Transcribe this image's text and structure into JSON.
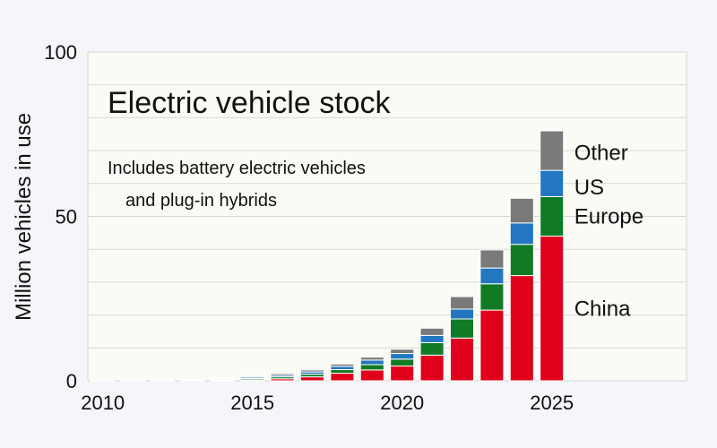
{
  "chart_data": {
    "type": "bar",
    "stacked": true,
    "title": "Electric vehicle stock",
    "subtitle_lines": [
      "Includes battery electric vehicles",
      "and plug-in hybrids"
    ],
    "ylabel": "Million vehicles in use",
    "xlabel": "",
    "ylim": [
      0,
      100
    ],
    "xlim": [
      2009.5,
      2029.5
    ],
    "yticks": [
      0,
      50,
      100
    ],
    "xticks": [
      2010,
      2015,
      2020,
      2025
    ],
    "grid": true,
    "legend": "labels beside final bar (right)",
    "x": [
      2010,
      2011,
      2012,
      2013,
      2014,
      2015,
      2016,
      2017,
      2018,
      2019,
      2020,
      2021,
      2022,
      2023,
      2024,
      2025
    ],
    "series": [
      {
        "name": "China",
        "color": "#e0001b",
        "values": [
          0.01,
          0.02,
          0.03,
          0.05,
          0.1,
          0.3,
          0.6,
          1.2,
          2.3,
          3.3,
          4.5,
          7.8,
          13.0,
          21.5,
          32.0,
          44.0
        ]
      },
      {
        "name": "Europe",
        "color": "#107a25",
        "values": [
          0.01,
          0.02,
          0.05,
          0.1,
          0.2,
          0.4,
          0.6,
          0.8,
          1.1,
          1.6,
          2.1,
          3.8,
          5.8,
          8.0,
          9.5,
          12.0
        ]
      },
      {
        "name": "US",
        "color": "#2277c0",
        "values": [
          0.01,
          0.02,
          0.07,
          0.15,
          0.3,
          0.4,
          0.5,
          0.7,
          1.0,
          1.4,
          1.7,
          2.2,
          3.0,
          4.8,
          6.5,
          8.0
        ]
      },
      {
        "name": "Other",
        "color": "#7a7a7a",
        "values": [
          0.0,
          0.01,
          0.05,
          0.1,
          0.2,
          0.3,
          0.5,
          0.6,
          0.7,
          0.9,
          1.3,
          2.2,
          3.8,
          5.5,
          7.5,
          12.0
        ]
      }
    ],
    "colors": {
      "plot_background": "#fbfbf6",
      "grid": "#d6d6d6",
      "page_background": "#f5f6f9"
    }
  }
}
